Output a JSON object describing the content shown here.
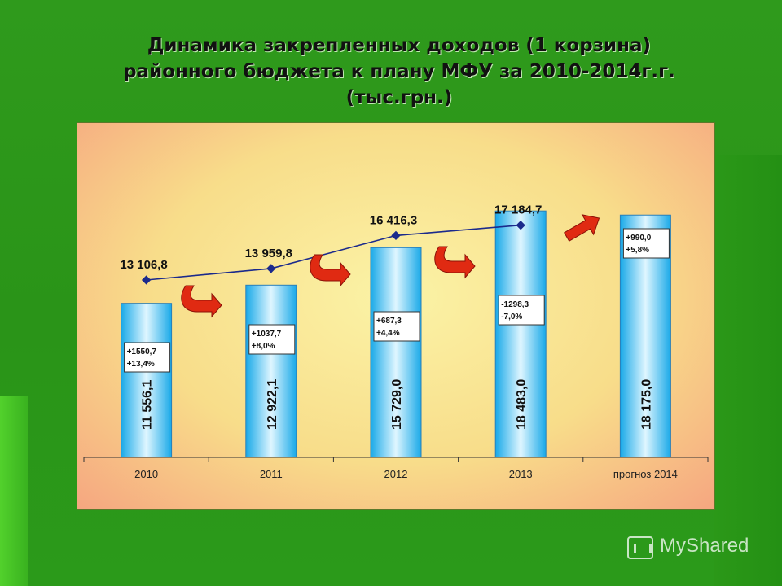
{
  "slide": {
    "title": "Динамика закрепленных доходов (1 корзина) районного бюджета к плану МФУ за 2010-2014г.г.(тыс.грн.)"
  },
  "watermark": {
    "text": "MyShared"
  },
  "colors": {
    "bar": "#19a9e8",
    "bar_light": "#dff6ff",
    "line": "#1b2a8c",
    "arrow": "#e02a12"
  },
  "chart_data": {
    "type": "bar",
    "categories": [
      "2010",
      "2011",
      "2012",
      "2013",
      "прогноз 2014"
    ],
    "bars": {
      "values": [
        11556.1,
        12922.1,
        15729.0,
        18483.0,
        18175.0
      ],
      "labels": [
        "11 556,1",
        "12 922,1",
        "15 729,0",
        "18 483,0",
        "18 175,0"
      ]
    },
    "line": {
      "values": [
        13106.8,
        13959.8,
        16416.3,
        17184.7
      ],
      "labels": [
        "13 106,8",
        "13 959,8",
        "16 416,3",
        "17 184,7"
      ]
    },
    "annotations": [
      {
        "abs": "+1550,7",
        "pct": "+13,4%"
      },
      {
        "abs": "+1037,7",
        "pct": "+8,0%"
      },
      {
        "abs": "+687,3",
        "pct": "+4,4%"
      },
      {
        "abs": "-1298,3",
        "pct": "-7,0%"
      },
      {
        "abs": "+990,0",
        "pct": "+5,8%"
      }
    ],
    "ylim": [
      0,
      18800
    ],
    "grid": false
  }
}
